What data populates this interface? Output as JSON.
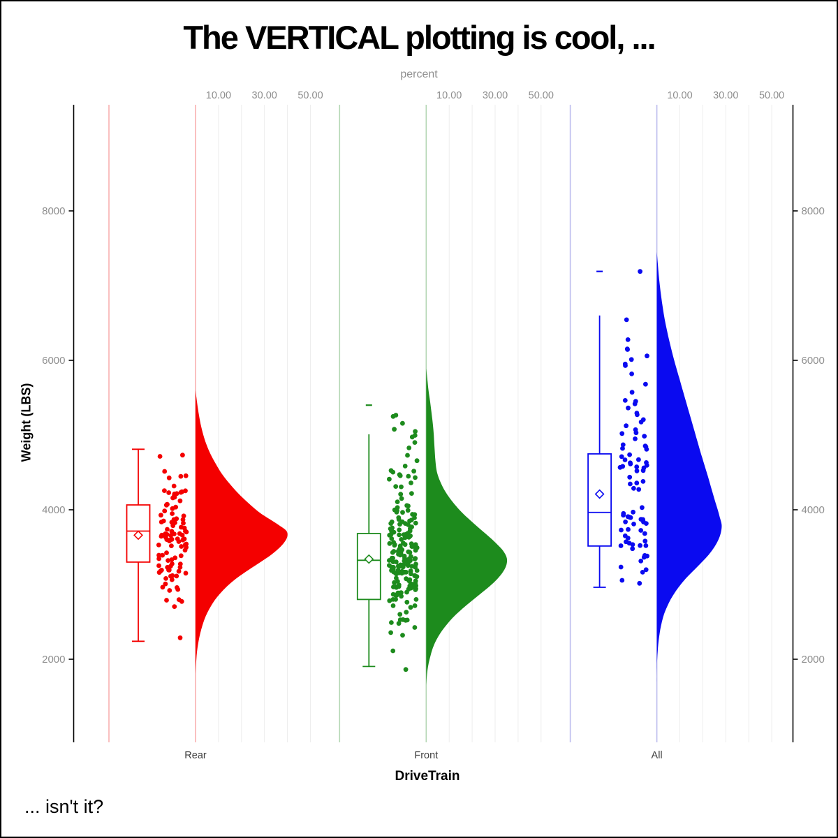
{
  "chart_data": {
    "type": "raincloud (half-violin + box plot + jittered strip, vertical)",
    "title": "The VERTICAL plotting is cool, ...",
    "footnote": "... isn't it?",
    "top_axis": {
      "label": "percent",
      "tick_values": [
        10,
        30,
        50
      ],
      "tick_labels": [
        "10.00",
        "30.00",
        "50.00"
      ],
      "grid_values": [
        10,
        20,
        30,
        40,
        50
      ]
    },
    "y_axis": {
      "label": "Weight (LBS)",
      "tick_values": [
        2000,
        4000,
        6000,
        8000
      ],
      "range_approx": [
        900,
        9400
      ]
    },
    "x_axis": {
      "label": "DriveTrain",
      "categories": [
        "Rear",
        "Front",
        "All"
      ]
    },
    "colors": {
      "axis": "#000000",
      "grid": "#ededed",
      "tick_text": "#8e8e8e",
      "category_text": "#3c3c3c"
    },
    "groups": [
      {
        "label": "Rear",
        "color": "#f40000",
        "light_color": "#f8b0b0",
        "n_points": 105,
        "box": {
          "whisker_low": 2240,
          "q1": 3300,
          "median": 3715,
          "mean": 3660,
          "q3": 4065,
          "whisker_high": 4810,
          "top_cap": true
        },
        "outliers": [],
        "extra_points": [],
        "data_min": 2245,
        "data_max": 4815,
        "seed": 11,
        "violin_weight_percent": [
          [
            5600,
            0
          ],
          [
            5450,
            0.6
          ],
          [
            5300,
            1.3
          ],
          [
            5150,
            2.2
          ],
          [
            5000,
            3.4
          ],
          [
            4870,
            4.8
          ],
          [
            4740,
            6.6
          ],
          [
            4610,
            8.9
          ],
          [
            4480,
            11.5
          ],
          [
            4350,
            14.8
          ],
          [
            4220,
            18.6
          ],
          [
            4090,
            23
          ],
          [
            3960,
            28
          ],
          [
            3870,
            32.5
          ],
          [
            3790,
            36.5
          ],
          [
            3720,
            39.5
          ],
          [
            3650,
            40
          ],
          [
            3580,
            39
          ],
          [
            3500,
            36.8
          ],
          [
            3400,
            33
          ],
          [
            3300,
            28.3
          ],
          [
            3200,
            23.3
          ],
          [
            3100,
            18.6
          ],
          [
            3000,
            14.6
          ],
          [
            2900,
            11.3
          ],
          [
            2800,
            8.6
          ],
          [
            2700,
            6.5
          ],
          [
            2600,
            4.8
          ],
          [
            2500,
            3.5
          ],
          [
            2400,
            2.5
          ],
          [
            2300,
            1.7
          ],
          [
            2200,
            1.1
          ],
          [
            2100,
            0.65
          ],
          [
            2000,
            0.35
          ],
          [
            1900,
            0.15
          ],
          [
            1800,
            0
          ]
        ]
      },
      {
        "label": "Front",
        "color": "#1d8b1d",
        "light_color": "#b4d7b4",
        "n_points": 200,
        "box": {
          "whisker_low": 1903,
          "q1": 2800,
          "median": 3324,
          "mean": 3340,
          "q3": 3682,
          "whisker_high": 5010,
          "top_cap": false
        },
        "outliers": [
          5400
        ],
        "extra_points": [],
        "data_min": 1850,
        "data_max": 5430,
        "seed": 5,
        "violin_weight_percent": [
          [
            5890,
            0
          ],
          [
            5750,
            0.5
          ],
          [
            5600,
            1
          ],
          [
            5450,
            1.7
          ],
          [
            5300,
            2.3
          ],
          [
            5150,
            2.9
          ],
          [
            5000,
            3.3
          ],
          [
            4850,
            3.6
          ],
          [
            4700,
            3.9
          ],
          [
            4550,
            4.4
          ],
          [
            4450,
            5.2
          ],
          [
            4350,
            6.5
          ],
          [
            4250,
            8.2
          ],
          [
            4150,
            10.4
          ],
          [
            4050,
            13
          ],
          [
            3950,
            16
          ],
          [
            3850,
            19.5
          ],
          [
            3750,
            23.2
          ],
          [
            3650,
            27
          ],
          [
            3550,
            30.5
          ],
          [
            3450,
            33.5
          ],
          [
            3350,
            35.1
          ],
          [
            3250,
            34.8
          ],
          [
            3150,
            33
          ],
          [
            3050,
            30.2
          ],
          [
            2950,
            26.6
          ],
          [
            2850,
            22.6
          ],
          [
            2750,
            18.6
          ],
          [
            2650,
            14.8
          ],
          [
            2550,
            11.4
          ],
          [
            2450,
            8.6
          ],
          [
            2350,
            6.2
          ],
          [
            2250,
            4.3
          ],
          [
            2150,
            2.9
          ],
          [
            2050,
            1.9
          ],
          [
            1950,
            1.1
          ],
          [
            1850,
            0.55
          ],
          [
            1750,
            0.2
          ],
          [
            1650,
            0
          ]
        ]
      },
      {
        "label": "All",
        "color": "#0a0af0",
        "light_color": "#bcbcee",
        "n_points": 86,
        "box": {
          "whisker_low": 2963,
          "q1": 3515,
          "median": 3965,
          "mean": 4210,
          "q3": 4748,
          "whisker_high": 6600,
          "top_cap": false
        },
        "outliers": [
          7190
        ],
        "extra_points": [
          7190
        ],
        "data_min": 2960,
        "data_max": 6610,
        "seed": 97,
        "violin_weight_percent": [
          [
            7450,
            0
          ],
          [
            7300,
            0.4
          ],
          [
            7150,
            0.8
          ],
          [
            7000,
            1.3
          ],
          [
            6850,
            1.9
          ],
          [
            6700,
            2.6
          ],
          [
            6550,
            3.4
          ],
          [
            6400,
            4.4
          ],
          [
            6250,
            5.5
          ],
          [
            6100,
            6.7
          ],
          [
            5950,
            8
          ],
          [
            5800,
            9.4
          ],
          [
            5650,
            10.8
          ],
          [
            5500,
            12.2
          ],
          [
            5350,
            13.6
          ],
          [
            5200,
            15
          ],
          [
            5050,
            16.4
          ],
          [
            4900,
            17.8
          ],
          [
            4750,
            19.2
          ],
          [
            4600,
            20.7
          ],
          [
            4450,
            22.2
          ],
          [
            4300,
            23.6
          ],
          [
            4150,
            25
          ],
          [
            4000,
            26.5
          ],
          [
            3900,
            27.4
          ],
          [
            3800,
            28.2
          ],
          [
            3700,
            27.9
          ],
          [
            3600,
            26.8
          ],
          [
            3500,
            25
          ],
          [
            3400,
            22.6
          ],
          [
            3300,
            19.6
          ],
          [
            3200,
            16.4
          ],
          [
            3100,
            13.2
          ],
          [
            3000,
            10.4
          ],
          [
            2900,
            8
          ],
          [
            2800,
            6
          ],
          [
            2700,
            4.4
          ],
          [
            2600,
            3.1
          ],
          [
            2500,
            2.2
          ],
          [
            2400,
            1.5
          ],
          [
            2300,
            1
          ],
          [
            2200,
            0.6
          ],
          [
            2100,
            0.35
          ],
          [
            2000,
            0.15
          ],
          [
            1900,
            0.05
          ],
          [
            1700,
            0
          ]
        ]
      }
    ]
  }
}
